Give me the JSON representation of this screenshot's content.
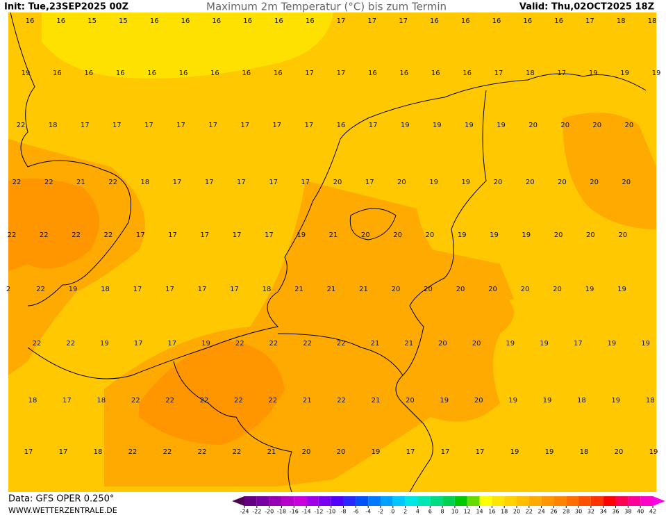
{
  "header": {
    "init": "Init: Tue,23SEP2025 00Z",
    "title": "Maximum 2m Temperatur (°C) bis zum Termin",
    "valid": "Valid: Thu,02OCT2025 18Z"
  },
  "map": {
    "rows": [
      [
        16,
        16,
        15,
        15,
        16,
        16,
        16,
        16,
        16,
        16,
        17,
        17,
        17,
        16,
        16,
        16,
        16,
        16,
        17,
        18,
        18
      ],
      [
        19,
        16,
        16,
        16,
        16,
        16,
        16,
        16,
        16,
        17,
        17,
        16,
        16,
        16,
        16,
        17,
        18,
        17,
        19,
        19,
        19
      ],
      [
        22,
        18,
        17,
        17,
        17,
        17,
        17,
        17,
        17,
        17,
        16,
        17,
        19,
        19,
        19,
        19,
        20,
        20,
        20,
        20
      ],
      [
        22,
        22,
        21,
        22,
        18,
        17,
        17,
        17,
        17,
        17,
        20,
        17,
        20,
        19,
        19,
        20,
        20,
        20,
        20,
        20
      ],
      [
        22,
        22,
        22,
        22,
        17,
        17,
        17,
        17,
        17,
        19,
        21,
        20,
        20,
        20,
        19,
        19,
        19,
        20,
        20,
        20
      ],
      [
        2,
        22,
        19,
        18,
        17,
        17,
        17,
        17,
        18,
        21,
        21,
        21,
        20,
        20,
        20,
        20,
        20,
        20,
        19,
        19
      ],
      [
        22,
        22,
        19,
        17,
        17,
        19,
        22,
        22,
        22,
        22,
        21,
        21,
        20,
        20,
        19,
        19,
        17,
        19,
        19
      ],
      [
        18,
        17,
        18,
        22,
        22,
        22,
        22,
        22,
        21,
        22,
        21,
        20,
        19,
        20,
        19,
        19,
        18,
        19,
        18
      ],
      [
        17,
        17,
        18,
        22,
        22,
        22,
        22,
        21,
        20,
        20,
        19,
        17,
        17,
        17,
        19,
        19,
        18,
        20,
        19
      ]
    ]
  },
  "legend": {
    "colors": [
      "#500050",
      "#640082",
      "#7800a0",
      "#9600b4",
      "#b400c8",
      "#c800dc",
      "#a000e6",
      "#7800f0",
      "#5000ff",
      "#2828ff",
      "#0050ff",
      "#0078ff",
      "#00a0ff",
      "#00c8ff",
      "#00e6e6",
      "#00e6b4",
      "#00dc82",
      "#00d250",
      "#00c800",
      "#64dc00",
      "#ffff00",
      "#ffe600",
      "#ffd200",
      "#ffbe00",
      "#ffaa00",
      "#ff9600",
      "#ff8200",
      "#ff6e00",
      "#ff5000",
      "#ff3200",
      "#ff0000",
      "#ff0050",
      "#ff0096",
      "#ff00c8",
      "#ff00e6"
    ],
    "ticks": [
      -24,
      -22,
      -20,
      -18,
      -16,
      -14,
      -12,
      -10,
      -8,
      -6,
      -4,
      -2,
      0,
      2,
      4,
      6,
      8,
      10,
      12,
      14,
      16,
      18,
      20,
      22,
      24,
      26,
      28,
      30,
      32,
      34,
      36,
      38,
      40,
      42
    ]
  },
  "footer": {
    "data": "Data: GFS OPER 0.250°",
    "site": "WWW.WETTERZENTRALE.DE"
  }
}
